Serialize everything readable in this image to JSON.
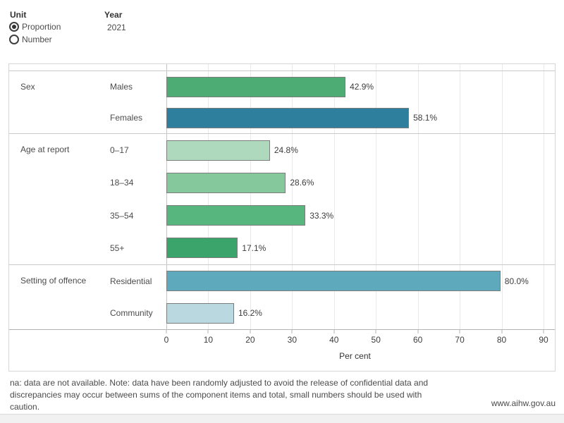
{
  "controls": {
    "unit_label": "Unit",
    "unit_options": [
      {
        "label": "Proportion",
        "selected": true
      },
      {
        "label": "Number",
        "selected": false
      }
    ],
    "year_label": "Year",
    "year_value": "2021"
  },
  "chart_data": {
    "type": "bar",
    "orientation": "horizontal",
    "xlabel": "Per cent",
    "xlim": [
      0,
      90
    ],
    "ticks": [
      0,
      10,
      20,
      30,
      40,
      50,
      60,
      70,
      80,
      90
    ],
    "grid": true,
    "unit_suffix": "%",
    "groups": [
      {
        "category": "Sex",
        "rows": [
          {
            "label": "Males",
            "value": 42.9,
            "display": "42.9%",
            "color": "#4cac73"
          },
          {
            "label": "Females",
            "value": 58.1,
            "display": "58.1%",
            "color": "#2e7f9e"
          }
        ]
      },
      {
        "category": "Age at report",
        "rows": [
          {
            "label": "0–17",
            "value": 24.8,
            "display": "24.8%",
            "color": "#aed9bc"
          },
          {
            "label": "18–34",
            "value": 28.6,
            "display": "28.6%",
            "color": "#84c89b"
          },
          {
            "label": "35–54",
            "value": 33.3,
            "display": "33.3%",
            "color": "#56b67d"
          },
          {
            "label": "55+",
            "value": 17.1,
            "display": "17.1%",
            "color": "#3ba46b"
          }
        ]
      },
      {
        "category": "Setting of offence",
        "rows": [
          {
            "label": "Residential",
            "value": 80.0,
            "display": "80.0%",
            "color": "#5fa9bd"
          },
          {
            "label": "Community",
            "value": 16.2,
            "display": "16.2%",
            "color": "#b9d8e0"
          }
        ]
      }
    ]
  },
  "footer": {
    "note": "na: data are not available. Note: data have been randomly adjusted to avoid the release of confidential data and discrepancies may occur between sums of the component items and total, small numbers should be used with caution.",
    "link": "www.aihw.gov.au"
  }
}
